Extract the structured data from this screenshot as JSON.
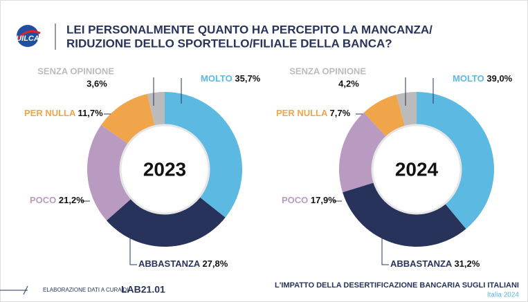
{
  "header": {
    "logo": "UILCA",
    "title": [
      "LEI PERSONALMENTE QUANTO HA PERCEPITO LA MANCANZA/",
      "RIDUZIONE DELLO SPORTELLO/FILIALE DELLA BANCA?"
    ]
  },
  "chart_data": [
    {
      "type": "donut",
      "center_label": "2023",
      "categories": [
        "MOLTO",
        "ABBASTANZA",
        "POCO",
        "PER NULLA",
        "SENZA OPINIONE"
      ],
      "values": [
        35.7,
        27.8,
        21.2,
        11.7,
        3.6
      ],
      "value_labels": [
        "35,7%",
        "27,8%",
        "21,2%",
        "11,7%",
        "3,6%"
      ],
      "colors": [
        "#5cb9e1",
        "#27335a",
        "#b99ac1",
        "#f0a54a",
        "#bbbbbb"
      ]
    },
    {
      "type": "donut",
      "center_label": "2024",
      "categories": [
        "MOLTO",
        "ABBASTANZA",
        "POCO",
        "PER NULLA",
        "SENZA OPINIONE"
      ],
      "values": [
        39.0,
        31.2,
        17.9,
        7.7,
        4.2
      ],
      "value_labels": [
        "39,0%",
        "31,2%",
        "17,9%",
        "7,7%",
        "4,2%"
      ],
      "colors": [
        "#5cb9e1",
        "#27335a",
        "#b99ac1",
        "#f0a54a",
        "#bbbbbb"
      ]
    }
  ],
  "footer": {
    "credit": "ELABORAZIONE DATI A CURA DI",
    "lab": "LAB21.01",
    "subject": "L'IMPATTO DELLA DESERTIFICAZIONE BANCARIA SUGLI ITALIANI",
    "place": "Italia 2024"
  }
}
